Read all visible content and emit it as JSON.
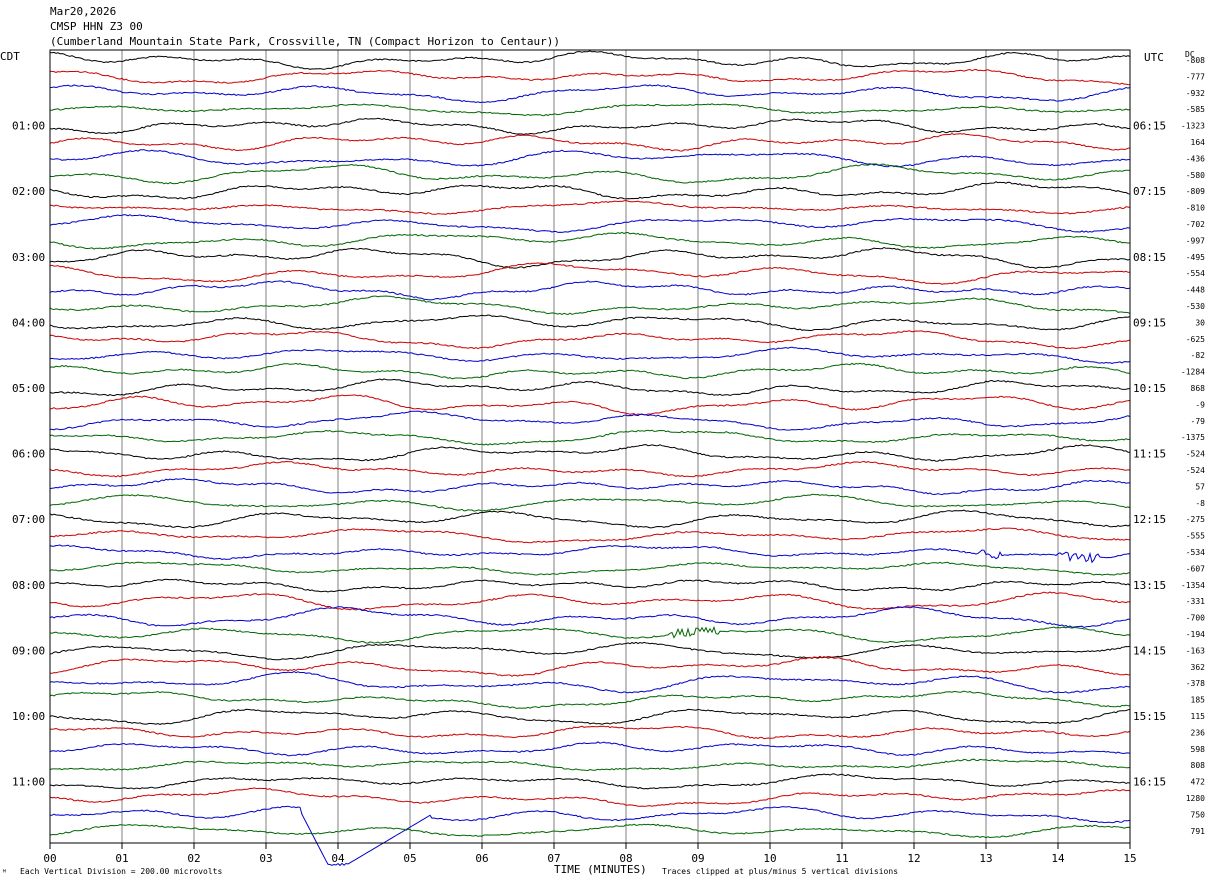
{
  "header": {
    "date": "Mar20,2026",
    "station": "CMSP HHN Z3 00",
    "location": "(Cumberland Mountain State Park, Crossville, TN (Compact Horizon to Centaur))"
  },
  "left_zone": "CDT",
  "right_zone": "UTC",
  "dc_header": "DC",
  "xlabel": "TIME (MINUTES)",
  "footer_left": "Each Vertical Division =  200.00 microvolts",
  "footer_right": "Traces clipped at plus/minus 5 vertical divisions",
  "colors": {
    "black": "#000000",
    "red": "#cc0000",
    "blue": "#0000cc",
    "green": "#006600",
    "grid": "#808080"
  },
  "chart_data": {
    "type": "line",
    "title": "CMSP HHN Z3 00",
    "x_range": [
      0,
      15
    ],
    "x_ticks": [
      "00",
      "01",
      "02",
      "03",
      "04",
      "05",
      "06",
      "07",
      "08",
      "09",
      "10",
      "11",
      "12",
      "13",
      "14",
      "15"
    ],
    "trace_minutes": 15,
    "trace_colors": [
      "black",
      "red",
      "blue",
      "green"
    ],
    "left_time_labels": [
      {
        "row": 4,
        "label": "01:00"
      },
      {
        "row": 8,
        "label": "02:00"
      },
      {
        "row": 12,
        "label": "03:00"
      },
      {
        "row": 16,
        "label": "04:00"
      },
      {
        "row": 20,
        "label": "05:00"
      },
      {
        "row": 24,
        "label": "06:00"
      },
      {
        "row": 28,
        "label": "07:00"
      },
      {
        "row": 32,
        "label": "08:00"
      },
      {
        "row": 36,
        "label": "09:00"
      },
      {
        "row": 40,
        "label": "10:00"
      },
      {
        "row": 44,
        "label": "11:00"
      }
    ],
    "right_time_labels": [
      {
        "row": 4,
        "label": "06:15"
      },
      {
        "row": 8,
        "label": "07:15"
      },
      {
        "row": 12,
        "label": "08:15"
      },
      {
        "row": 16,
        "label": "09:15"
      },
      {
        "row": 20,
        "label": "10:15"
      },
      {
        "row": 24,
        "label": "11:15"
      },
      {
        "row": 28,
        "label": "12:15"
      },
      {
        "row": 32,
        "label": "13:15"
      },
      {
        "row": 36,
        "label": "14:15"
      },
      {
        "row": 40,
        "label": "15:15"
      },
      {
        "row": 44,
        "label": "16:15"
      }
    ],
    "dc_offsets": [
      "-808",
      "-777",
      "-932",
      "-585",
      "-1323",
      "164",
      "-436",
      "-580",
      "-809",
      "-810",
      "-702",
      "-997",
      "-495",
      "-554",
      "-448",
      "-530",
      "30",
      "-625",
      "-82",
      "-1284",
      "868",
      "-9",
      "-79",
      "-1375",
      "-524",
      "-524",
      "57",
      "-8",
      "-275",
      "-555",
      "-534",
      "-607",
      "-1354",
      "-331",
      "-700",
      "-194",
      "-163",
      "362",
      "-378",
      "185",
      "115",
      "236",
      "598",
      "808",
      "472",
      "1280",
      "750",
      "791"
    ],
    "events": [
      {
        "row": 30,
        "start_min": 12.9,
        "end_min": 13.2,
        "type": "burst"
      },
      {
        "row": 30,
        "start_min": 14.0,
        "end_min": 14.6,
        "type": "burst"
      },
      {
        "row": 35,
        "start_min": 8.6,
        "end_min": 9.3,
        "type": "burst"
      },
      {
        "row": 46,
        "start_min": 3.5,
        "end_min": 5.3,
        "type": "clipped_excursion"
      }
    ]
  }
}
